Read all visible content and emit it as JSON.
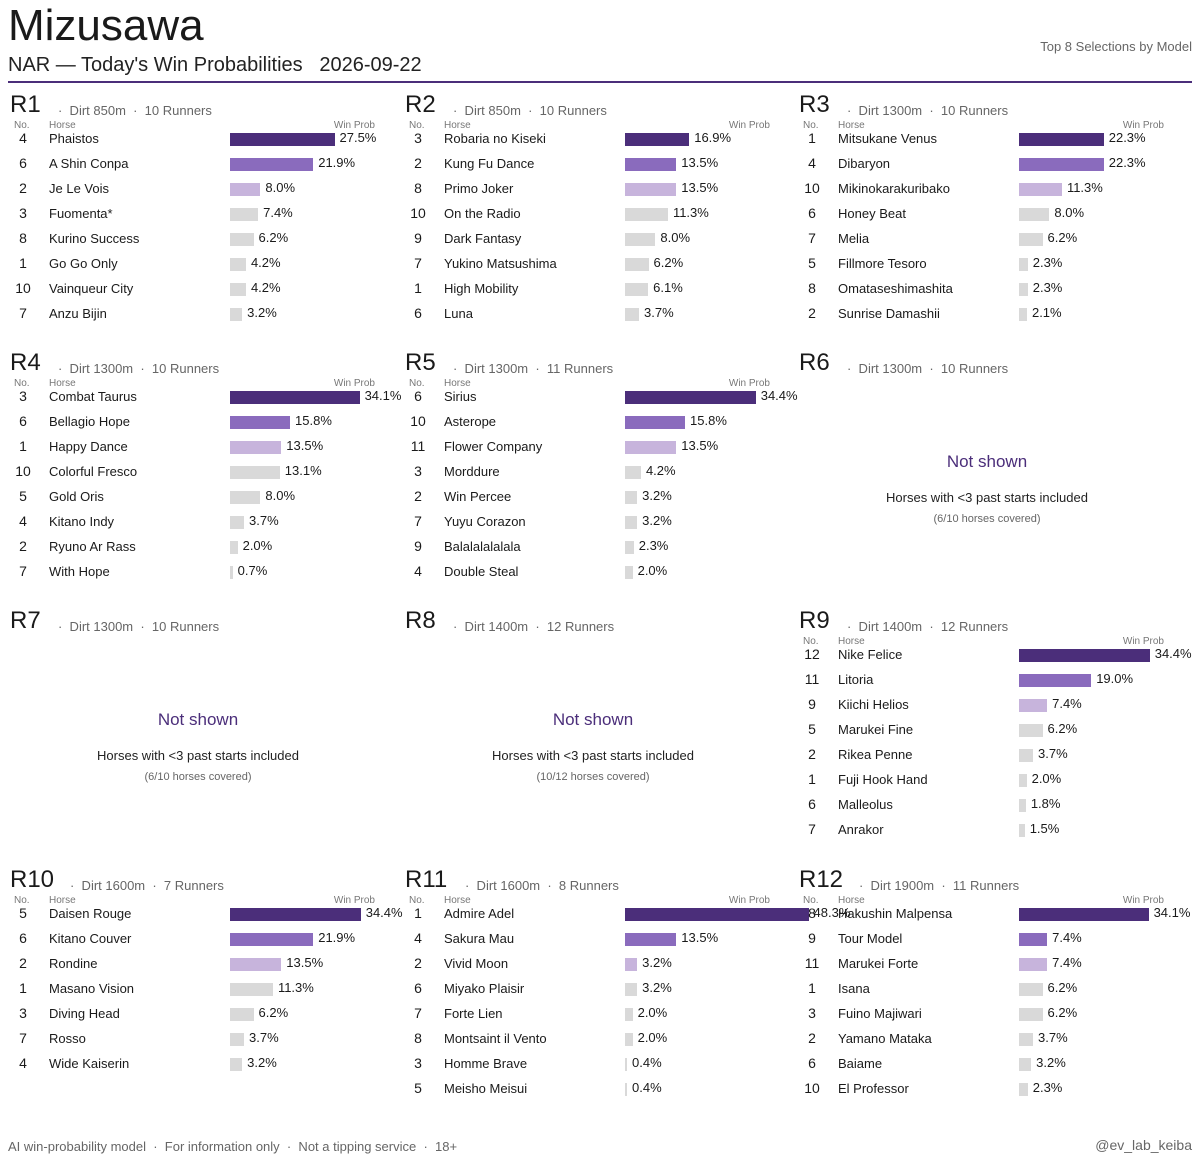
{
  "header": {
    "title": "Mizusawa",
    "subtitle": "NAR — Today's Win Probabilities   2026-09-22",
    "top_right": "Top 8 Selections by Model"
  },
  "footer": {
    "left": "AI win-probability model  ·  For information only  ·  Not a tipping service  ·  18+",
    "right": "@ev_lab_keiba"
  },
  "column_headers": {
    "no": "No.",
    "horse": "Horse",
    "prob": "Win Prob"
  },
  "colors": {
    "rank1": "#4b2e7a",
    "rank2": "#8a6bbd",
    "rank3": "#c7b4dc",
    "other": "#d9d9d9",
    "accent": "#4b2e7a"
  },
  "chart_data": {
    "type": "bar",
    "value_unit": "%",
    "races": [
      {
        "race": "R1",
        "meta": "·  Dirt 850m  ·  10 Runners",
        "entries": [
          {
            "no": "4",
            "horse": "Phaistos",
            "prob": 27.5
          },
          {
            "no": "6",
            "horse": "A Shin Conpa",
            "prob": 21.9
          },
          {
            "no": "2",
            "horse": "Je Le Vois",
            "prob": 8.0
          },
          {
            "no": "3",
            "horse": "Fuomenta*",
            "prob": 7.4
          },
          {
            "no": "8",
            "horse": "Kurino Success",
            "prob": 6.2
          },
          {
            "no": "1",
            "horse": "Go Go Only",
            "prob": 4.2
          },
          {
            "no": "10",
            "horse": "Vainqueur City",
            "prob": 4.2
          },
          {
            "no": "7",
            "horse": "Anzu Bijin",
            "prob": 3.2
          }
        ]
      },
      {
        "race": "R2",
        "meta": "·  Dirt 850m  ·  10 Runners",
        "entries": [
          {
            "no": "3",
            "horse": "Robaria no Kiseki",
            "prob": 16.9
          },
          {
            "no": "2",
            "horse": "Kung Fu Dance",
            "prob": 13.5
          },
          {
            "no": "8",
            "horse": "Primo Joker",
            "prob": 13.5
          },
          {
            "no": "10",
            "horse": "On the Radio",
            "prob": 11.3
          },
          {
            "no": "9",
            "horse": "Dark Fantasy",
            "prob": 8.0
          },
          {
            "no": "7",
            "horse": "Yukino Matsushima",
            "prob": 6.2
          },
          {
            "no": "1",
            "horse": "High Mobility",
            "prob": 6.1
          },
          {
            "no": "6",
            "horse": "Luna",
            "prob": 3.7
          }
        ]
      },
      {
        "race": "R3",
        "meta": "·  Dirt 1300m  ·  10 Runners",
        "entries": [
          {
            "no": "1",
            "horse": "Mitsukane Venus",
            "prob": 22.3
          },
          {
            "no": "4",
            "horse": "Dibaryon",
            "prob": 22.3
          },
          {
            "no": "10",
            "horse": "Mikinokarakuribako",
            "prob": 11.3
          },
          {
            "no": "6",
            "horse": "Honey Beat",
            "prob": 8.0
          },
          {
            "no": "7",
            "horse": "Melia",
            "prob": 6.2
          },
          {
            "no": "5",
            "horse": "Fillmore Tesoro",
            "prob": 2.3
          },
          {
            "no": "8",
            "horse": "Omataseshimashita",
            "prob": 2.3
          },
          {
            "no": "2",
            "horse": "Sunrise Damashii",
            "prob": 2.1
          }
        ]
      },
      {
        "race": "R4",
        "meta": "·  Dirt 1300m  ·  10 Runners",
        "entries": [
          {
            "no": "3",
            "horse": "Combat Taurus",
            "prob": 34.1
          },
          {
            "no": "6",
            "horse": "Bellagio Hope",
            "prob": 15.8
          },
          {
            "no": "1",
            "horse": "Happy Dance",
            "prob": 13.5
          },
          {
            "no": "10",
            "horse": "Colorful Fresco",
            "prob": 13.1
          },
          {
            "no": "5",
            "horse": "Gold Oris",
            "prob": 8.0
          },
          {
            "no": "4",
            "horse": "Kitano Indy",
            "prob": 3.7
          },
          {
            "no": "2",
            "horse": "Ryuno Ar Rass",
            "prob": 2.0
          },
          {
            "no": "7",
            "horse": "With Hope",
            "prob": 0.7
          }
        ]
      },
      {
        "race": "R5",
        "meta": "·  Dirt 1300m  ·  11 Runners",
        "entries": [
          {
            "no": "6",
            "horse": "Sirius",
            "prob": 34.4
          },
          {
            "no": "10",
            "horse": "Asterope",
            "prob": 15.8
          },
          {
            "no": "11",
            "horse": "Flower Company",
            "prob": 13.5
          },
          {
            "no": "3",
            "horse": "Morddure",
            "prob": 4.2
          },
          {
            "no": "2",
            "horse": "Win Percee",
            "prob": 3.2
          },
          {
            "no": "7",
            "horse": "Yuyu Corazon",
            "prob": 3.2
          },
          {
            "no": "9",
            "horse": "Balalalalalala",
            "prob": 2.3
          },
          {
            "no": "4",
            "horse": "Double Steal",
            "prob": 2.0
          }
        ]
      },
      {
        "race": "R6",
        "meta": "·  Dirt 1300m  ·  10 Runners",
        "not_shown": {
          "title": "Not shown",
          "reason": "Horses with <3 past starts included",
          "coverage": "(6/10 horses covered)"
        }
      },
      {
        "race": "R7",
        "meta": "·  Dirt 1300m  ·  10 Runners",
        "not_shown": {
          "title": "Not shown",
          "reason": "Horses with <3 past starts included",
          "coverage": "(6/10 horses covered)"
        }
      },
      {
        "race": "R8",
        "meta": "·  Dirt 1400m  ·  12 Runners",
        "not_shown": {
          "title": "Not shown",
          "reason": "Horses with <3 past starts included",
          "coverage": "(10/12 horses covered)"
        }
      },
      {
        "race": "R9",
        "meta": "·  Dirt 1400m  ·  12 Runners",
        "entries": [
          {
            "no": "12",
            "horse": "Nike Felice",
            "prob": 34.4
          },
          {
            "no": "11",
            "horse": "Litoria",
            "prob": 19.0
          },
          {
            "no": "9",
            "horse": "Kiichi Helios",
            "prob": 7.4
          },
          {
            "no": "5",
            "horse": "Marukei Fine",
            "prob": 6.2
          },
          {
            "no": "2",
            "horse": "Rikea Penne",
            "prob": 3.7
          },
          {
            "no": "1",
            "horse": "Fuji Hook Hand",
            "prob": 2.0
          },
          {
            "no": "6",
            "horse": "Malleolus",
            "prob": 1.8
          },
          {
            "no": "7",
            "horse": "Anrakor",
            "prob": 1.5
          }
        ]
      },
      {
        "race": "R10",
        "meta": "·  Dirt 1600m  ·  7 Runners",
        "entries": [
          {
            "no": "5",
            "horse": "Daisen Rouge",
            "prob": 34.4
          },
          {
            "no": "6",
            "horse": "Kitano Couver",
            "prob": 21.9
          },
          {
            "no": "2",
            "horse": "Rondine",
            "prob": 13.5
          },
          {
            "no": "1",
            "horse": "Masano Vision",
            "prob": 11.3
          },
          {
            "no": "3",
            "horse": "Diving Head",
            "prob": 6.2
          },
          {
            "no": "7",
            "horse": "Rosso",
            "prob": 3.7
          },
          {
            "no": "4",
            "horse": "Wide Kaiserin",
            "prob": 3.2
          }
        ]
      },
      {
        "race": "R11",
        "meta": "·  Dirt 1600m  ·  8 Runners",
        "entries": [
          {
            "no": "1",
            "horse": "Admire Adel",
            "prob": 48.3
          },
          {
            "no": "4",
            "horse": "Sakura Mau",
            "prob": 13.5
          },
          {
            "no": "2",
            "horse": "Vivid Moon",
            "prob": 3.2
          },
          {
            "no": "6",
            "horse": "Miyako Plaisir",
            "prob": 3.2
          },
          {
            "no": "7",
            "horse": "Forte Lien",
            "prob": 2.0
          },
          {
            "no": "8",
            "horse": "Montsaint il Vento",
            "prob": 2.0
          },
          {
            "no": "3",
            "horse": "Homme Brave",
            "prob": 0.4
          },
          {
            "no": "5",
            "horse": "Meisho Meisui",
            "prob": 0.4
          }
        ]
      },
      {
        "race": "R12",
        "meta": "·  Dirt 1900m  ·  11 Runners",
        "entries": [
          {
            "no": "8",
            "horse": "Hakushin Malpensa",
            "prob": 34.1
          },
          {
            "no": "9",
            "horse": "Tour Model",
            "prob": 7.4
          },
          {
            "no": "11",
            "horse": "Marukei Forte",
            "prob": 7.4
          },
          {
            "no": "1",
            "horse": "Isana",
            "prob": 6.2
          },
          {
            "no": "3",
            "horse": "Fuino Majiwari",
            "prob": 6.2
          },
          {
            "no": "2",
            "horse": "Yamano Mataka",
            "prob": 3.7
          },
          {
            "no": "6",
            "horse": "Baiame",
            "prob": 3.2
          },
          {
            "no": "10",
            "horse": "El Professor",
            "prob": 2.3
          }
        ]
      }
    ]
  }
}
